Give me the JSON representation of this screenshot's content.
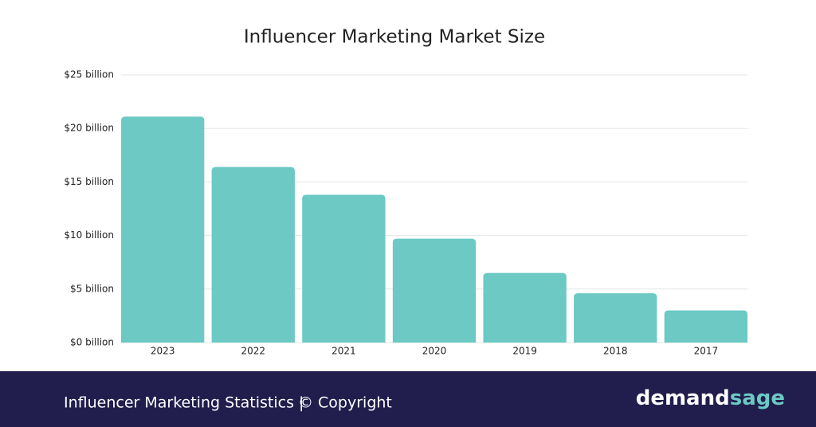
{
  "chart_data": {
    "type": "bar",
    "title": "Influencer Marketing Market Size",
    "categories": [
      "2023",
      "2022",
      "2021",
      "2020",
      "2019",
      "2018",
      "2017"
    ],
    "values": [
      21.1,
      16.4,
      13.8,
      9.7,
      6.5,
      4.6,
      3.0
    ],
    "color": "#6cc9c4",
    "ylim": [
      0,
      25
    ],
    "yticks": [
      {
        "value": 0,
        "label": "$0 billion"
      },
      {
        "value": 5,
        "label": "$5 billion"
      },
      {
        "value": 10,
        "label": "$10 billion"
      },
      {
        "value": 15,
        "label": "$15 billion"
      },
      {
        "value": 20,
        "label": "$20 billion"
      },
      {
        "value": 25,
        "label": "$25 billion"
      }
    ],
    "grid": true
  },
  "footer": {
    "caption": "Influencer Marketing Statistics |",
    "copyright": "© Copyright",
    "logo_left": "demand",
    "logo_right": "sage"
  }
}
